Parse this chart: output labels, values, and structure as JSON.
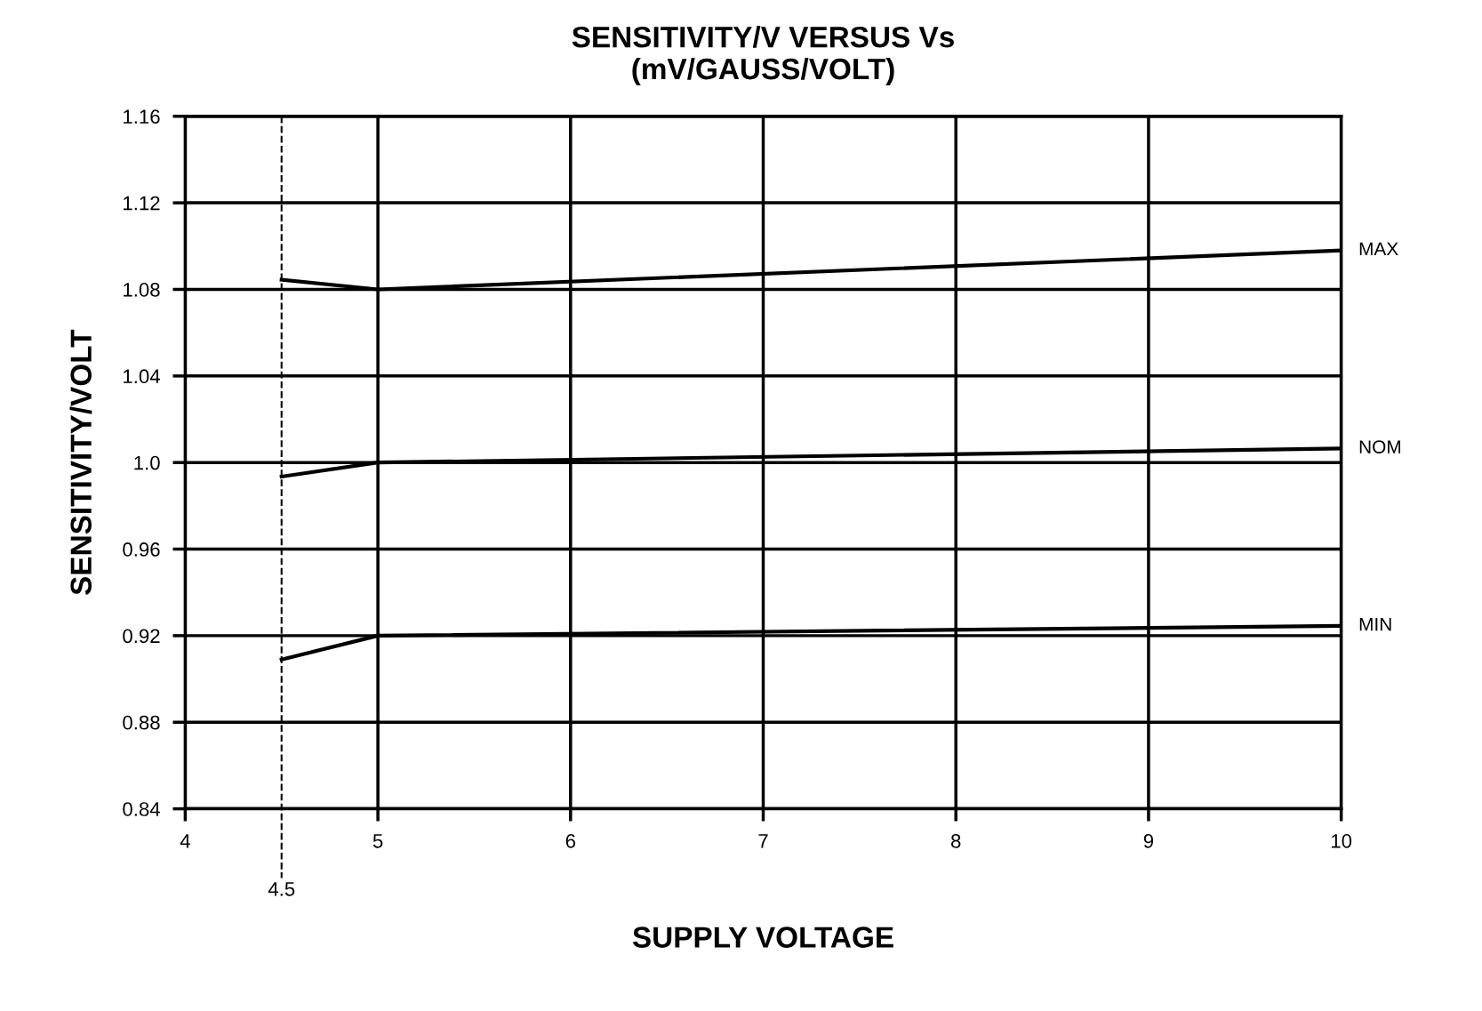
{
  "chart_data": {
    "type": "line",
    "title": "SENSITIVITY/V VERSUS Vs\n(mV/GAUSS/VOLT)",
    "xlabel": "SUPPLY VOLTAGE",
    "ylabel": "SENSITIVITY/VOLT",
    "x": [
      4.5,
      5,
      10
    ],
    "series": [
      {
        "name": "MAX",
        "color": "#000000",
        "values": [
          1.0845,
          1.08,
          1.098
        ]
      },
      {
        "name": "NOM",
        "color": "#000000",
        "values": [
          0.9935,
          1.0,
          1.0065
        ]
      },
      {
        "name": "MIN",
        "color": "#000000",
        "values": [
          0.909,
          0.92,
          0.9245
        ]
      }
    ],
    "xlim": [
      4,
      10
    ],
    "xticks": [
      4,
      5,
      6,
      7,
      8,
      9,
      10
    ],
    "ylim": [
      0.84,
      1.16
    ],
    "yticks": [
      0.84,
      0.88,
      0.92,
      0.96,
      {
        "value": 1.0,
        "label": "1.0"
      },
      1.04,
      1.08,
      1.12,
      1.16
    ],
    "ref_lines": [
      {
        "axis": "x",
        "value": 4.5,
        "label": "4.5",
        "color": "#000000",
        "line_style": "dashed"
      }
    ],
    "grid": true,
    "legend": false,
    "marker": "none",
    "line_style": "solid"
  }
}
